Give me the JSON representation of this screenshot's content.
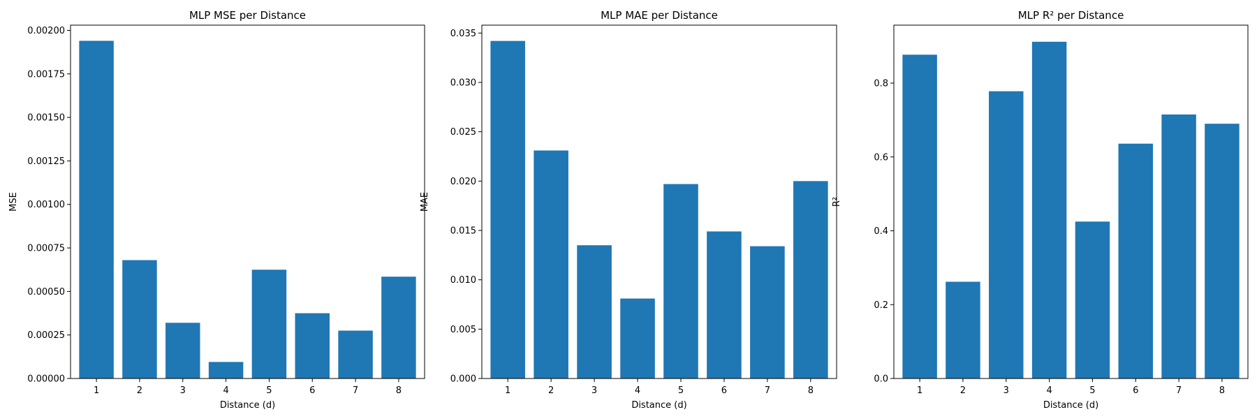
{
  "chart_data": [
    {
      "type": "bar",
      "title": "MLP MSE per Distance",
      "xlabel": "Distance (d)",
      "ylabel": "MSE",
      "categories": [
        "1",
        "2",
        "3",
        "4",
        "5",
        "6",
        "7",
        "8"
      ],
      "values": [
        0.00194,
        0.00068,
        0.00032,
        9.5e-05,
        0.000625,
        0.000375,
        0.000275,
        0.000585
      ],
      "ylim": [
        0,
        0.00203
      ],
      "yticks": [
        "0.00000",
        "0.00025",
        "0.00050",
        "0.00075",
        "0.00100",
        "0.00125",
        "0.00150",
        "0.00175",
        "0.00200"
      ],
      "ytick_values": [
        0,
        0.00025,
        0.0005,
        0.00075,
        0.001,
        0.00125,
        0.0015,
        0.00175,
        0.002
      ],
      "bar_color": "#1f77b4",
      "grid": false,
      "legend": false
    },
    {
      "type": "bar",
      "title": "MLP MAE per Distance",
      "xlabel": "Distance (d)",
      "ylabel": "MAE",
      "categories": [
        "1",
        "2",
        "3",
        "4",
        "5",
        "6",
        "7",
        "8"
      ],
      "values": [
        0.0342,
        0.0231,
        0.0135,
        0.0081,
        0.0197,
        0.0149,
        0.0134,
        0.02
      ],
      "ylim": [
        0,
        0.0358
      ],
      "yticks": [
        "0.000",
        "0.005",
        "0.010",
        "0.015",
        "0.020",
        "0.025",
        "0.030",
        "0.035"
      ],
      "ytick_values": [
        0,
        0.005,
        0.01,
        0.015,
        0.02,
        0.025,
        0.03,
        0.035
      ],
      "bar_color": "#1f77b4",
      "grid": false,
      "legend": false
    },
    {
      "type": "bar",
      "title": "MLP R² per Distance",
      "xlabel": "Distance (d)",
      "ylabel": "R²",
      "categories": [
        "1",
        "2",
        "3",
        "4",
        "5",
        "6",
        "7",
        "8"
      ],
      "values": [
        0.877,
        0.262,
        0.778,
        0.912,
        0.425,
        0.636,
        0.715,
        0.69
      ],
      "ylim": [
        0,
        0.957
      ],
      "yticks": [
        "0.0",
        "0.2",
        "0.4",
        "0.6",
        "0.8"
      ],
      "ytick_values": [
        0,
        0.2,
        0.4,
        0.6,
        0.8
      ],
      "bar_color": "#1f77b4",
      "grid": false,
      "legend": false
    }
  ]
}
